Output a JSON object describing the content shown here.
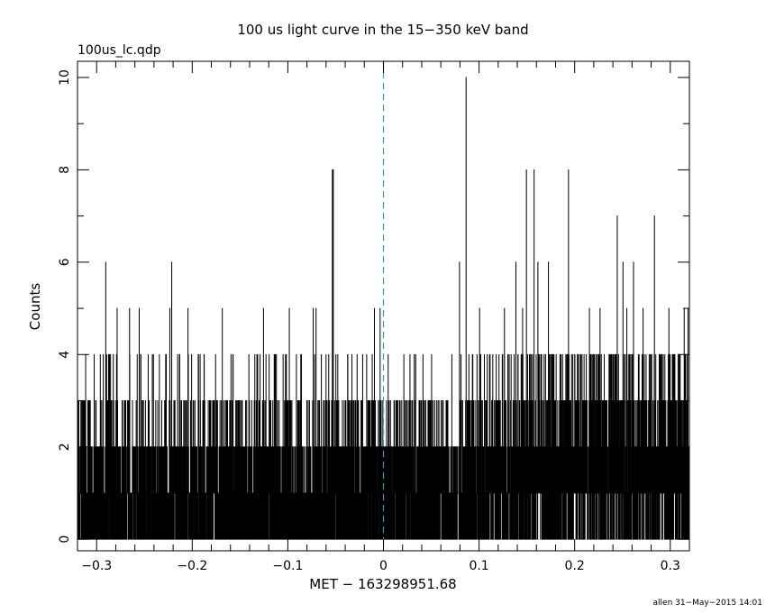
{
  "plot": {
    "title": "100 us light curve in the 15−350 keV band",
    "file_label": "100us_lc.qdp",
    "footer": "allen 31−May−2015 14:01"
  },
  "chart_data": {
    "type": "line",
    "style": "step histogram (100 us bins)",
    "xlabel": "MET − 163298951.68",
    "ylabel": "Counts",
    "xlim": [
      -0.32,
      0.32
    ],
    "ylim": [
      -0.25,
      10.35
    ],
    "x_ticks": [
      -0.3,
      -0.2,
      -0.1,
      0,
      0.1,
      0.2,
      0.3
    ],
    "x_tick_labels": [
      "−0.3",
      "−0.2",
      "−0.1",
      "0",
      "0.1",
      "0.2",
      "0.3"
    ],
    "y_ticks": [
      0,
      2,
      4,
      6,
      8,
      10
    ],
    "y_tick_labels": [
      "0",
      "2",
      "4",
      "6",
      "8",
      "10"
    ],
    "bin_width": 0.0001,
    "typical_count_range": [
      0,
      3
    ],
    "grid": false,
    "reference_line": {
      "x": 0,
      "style": "dashed",
      "color": "#3399cc"
    },
    "series": [
      {
        "color": "#000000",
        "peaks": [
          {
            "x": -0.2905,
            "y": 6
          },
          {
            "x": -0.2215,
            "y": 6
          },
          {
            "x": -0.0535,
            "y": 8
          },
          {
            "x": -0.0525,
            "y": 8
          },
          {
            "x": 0.0865,
            "y": 10
          },
          {
            "x": 0.0795,
            "y": 6
          },
          {
            "x": 0.1495,
            "y": 8
          },
          {
            "x": 0.1575,
            "y": 8
          },
          {
            "x": 0.1935,
            "y": 8
          },
          {
            "x": 0.2445,
            "y": 7
          },
          {
            "x": 0.2835,
            "y": 7
          },
          {
            "x": 0.1385,
            "y": 6
          },
          {
            "x": 0.1615,
            "y": 6
          },
          {
            "x": 0.1725,
            "y": 6
          },
          {
            "x": 0.2505,
            "y": 6
          },
          {
            "x": 0.2615,
            "y": 6
          },
          {
            "x": -0.2785,
            "y": 5
          },
          {
            "x": -0.2655,
            "y": 5
          },
          {
            "x": -0.2555,
            "y": 5
          },
          {
            "x": -0.2235,
            "y": 5
          },
          {
            "x": -0.2045,
            "y": 5
          },
          {
            "x": -0.1685,
            "y": 5
          },
          {
            "x": -0.1255,
            "y": 5
          },
          {
            "x": -0.0985,
            "y": 5
          },
          {
            "x": -0.0735,
            "y": 5
          },
          {
            "x": -0.0705,
            "y": 5
          },
          {
            "x": -0.0095,
            "y": 5
          },
          {
            "x": -0.0035,
            "y": 5
          },
          {
            "x": 0.1005,
            "y": 5
          },
          {
            "x": 0.1265,
            "y": 5
          },
          {
            "x": 0.1455,
            "y": 5
          },
          {
            "x": 0.2155,
            "y": 5
          },
          {
            "x": 0.2265,
            "y": 5
          },
          {
            "x": 0.2545,
            "y": 5
          },
          {
            "x": 0.2715,
            "y": 5
          },
          {
            "x": 0.2985,
            "y": 5
          },
          {
            "x": 0.3145,
            "y": 5
          },
          {
            "x": 0.3185,
            "y": 5
          }
        ]
      }
    ]
  }
}
